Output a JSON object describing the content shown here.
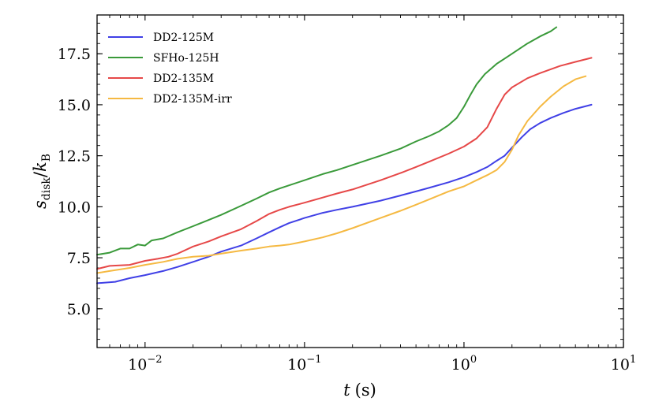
{
  "chart_data": {
    "type": "line",
    "title": "",
    "xlabel": "t (s)",
    "xlabel_var": "t",
    "xlabel_unit": "(s)",
    "ylabel": "s_disk/k_B",
    "ylabel_sym": "s",
    "ylabel_sub": "disk",
    "ylabel_den": "k",
    "ylabel_den_sub": "B",
    "xscale": "log",
    "xlim": [
      0.005,
      10
    ],
    "ylim": [
      3.1,
      19.4
    ],
    "xticks": [
      {
        "value": 0.01,
        "base": "10",
        "exp": "−2"
      },
      {
        "value": 0.1,
        "base": "10",
        "exp": "−1"
      },
      {
        "value": 1,
        "base": "10",
        "exp": "0"
      },
      {
        "value": 10,
        "base": "10",
        "exp": "1"
      }
    ],
    "yticks": [
      {
        "value": 5.0,
        "label": "5.0"
      },
      {
        "value": 7.5,
        "label": "7.5"
      },
      {
        "value": 10.0,
        "label": "10.0"
      },
      {
        "value": 12.5,
        "label": "12.5"
      },
      {
        "value": 15.0,
        "label": "15.0"
      },
      {
        "value": 17.5,
        "label": "17.5"
      }
    ],
    "legend_position": "top-left",
    "series": [
      {
        "name": "DD2-125M",
        "color": "#4040e6",
        "points": [
          [
            0.005,
            6.25
          ],
          [
            0.0065,
            6.32
          ],
          [
            0.008,
            6.5
          ],
          [
            0.01,
            6.65
          ],
          [
            0.013,
            6.85
          ],
          [
            0.016,
            7.05
          ],
          [
            0.02,
            7.3
          ],
          [
            0.025,
            7.55
          ],
          [
            0.03,
            7.8
          ],
          [
            0.04,
            8.1
          ],
          [
            0.05,
            8.45
          ],
          [
            0.06,
            8.75
          ],
          [
            0.07,
            9.0
          ],
          [
            0.08,
            9.2
          ],
          [
            0.1,
            9.45
          ],
          [
            0.13,
            9.7
          ],
          [
            0.16,
            9.85
          ],
          [
            0.2,
            10.0
          ],
          [
            0.3,
            10.3
          ],
          [
            0.4,
            10.55
          ],
          [
            0.5,
            10.75
          ],
          [
            0.6,
            10.92
          ],
          [
            0.8,
            11.2
          ],
          [
            1.0,
            11.45
          ],
          [
            1.2,
            11.7
          ],
          [
            1.4,
            11.95
          ],
          [
            1.6,
            12.25
          ],
          [
            1.8,
            12.5
          ],
          [
            2.0,
            12.9
          ],
          [
            2.3,
            13.4
          ],
          [
            2.6,
            13.8
          ],
          [
            3.0,
            14.1
          ],
          [
            3.5,
            14.35
          ],
          [
            4.2,
            14.6
          ],
          [
            5.0,
            14.8
          ],
          [
            6.3,
            15.0
          ]
        ]
      },
      {
        "name": "SFHo-125H",
        "color": "#3a9a3a",
        "points": [
          [
            0.005,
            7.65
          ],
          [
            0.006,
            7.75
          ],
          [
            0.007,
            7.95
          ],
          [
            0.008,
            7.95
          ],
          [
            0.009,
            8.15
          ],
          [
            0.01,
            8.1
          ],
          [
            0.011,
            8.35
          ],
          [
            0.013,
            8.45
          ],
          [
            0.016,
            8.75
          ],
          [
            0.02,
            9.05
          ],
          [
            0.025,
            9.35
          ],
          [
            0.03,
            9.6
          ],
          [
            0.04,
            10.05
          ],
          [
            0.05,
            10.4
          ],
          [
            0.06,
            10.7
          ],
          [
            0.07,
            10.9
          ],
          [
            0.08,
            11.05
          ],
          [
            0.1,
            11.3
          ],
          [
            0.13,
            11.6
          ],
          [
            0.16,
            11.8
          ],
          [
            0.2,
            12.05
          ],
          [
            0.3,
            12.5
          ],
          [
            0.4,
            12.85
          ],
          [
            0.5,
            13.2
          ],
          [
            0.6,
            13.45
          ],
          [
            0.7,
            13.7
          ],
          [
            0.8,
            14.0
          ],
          [
            0.9,
            14.35
          ],
          [
            1.0,
            14.9
          ],
          [
            1.1,
            15.5
          ],
          [
            1.2,
            16.0
          ],
          [
            1.35,
            16.5
          ],
          [
            1.6,
            17.0
          ],
          [
            2.0,
            17.5
          ],
          [
            2.5,
            18.0
          ],
          [
            3.0,
            18.35
          ],
          [
            3.5,
            18.6
          ],
          [
            3.8,
            18.8
          ]
        ]
      },
      {
        "name": "DD2-135M",
        "color": "#e64848",
        "points": [
          [
            0.005,
            6.95
          ],
          [
            0.006,
            7.1
          ],
          [
            0.008,
            7.15
          ],
          [
            0.01,
            7.35
          ],
          [
            0.012,
            7.45
          ],
          [
            0.014,
            7.55
          ],
          [
            0.016,
            7.7
          ],
          [
            0.02,
            8.05
          ],
          [
            0.025,
            8.3
          ],
          [
            0.03,
            8.55
          ],
          [
            0.04,
            8.9
          ],
          [
            0.05,
            9.3
          ],
          [
            0.06,
            9.65
          ],
          [
            0.07,
            9.85
          ],
          [
            0.08,
            10.0
          ],
          [
            0.1,
            10.2
          ],
          [
            0.13,
            10.45
          ],
          [
            0.16,
            10.65
          ],
          [
            0.2,
            10.85
          ],
          [
            0.3,
            11.3
          ],
          [
            0.4,
            11.65
          ],
          [
            0.5,
            11.95
          ],
          [
            0.6,
            12.2
          ],
          [
            0.8,
            12.6
          ],
          [
            1.0,
            12.95
          ],
          [
            1.2,
            13.35
          ],
          [
            1.4,
            13.9
          ],
          [
            1.6,
            14.8
          ],
          [
            1.8,
            15.5
          ],
          [
            2.0,
            15.85
          ],
          [
            2.5,
            16.3
          ],
          [
            3.0,
            16.55
          ],
          [
            4.0,
            16.9
          ],
          [
            5.0,
            17.1
          ],
          [
            6.3,
            17.3
          ]
        ]
      },
      {
        "name": "DD2-135M-irr",
        "color": "#f5b942",
        "points": [
          [
            0.005,
            6.75
          ],
          [
            0.006,
            6.85
          ],
          [
            0.008,
            7.0
          ],
          [
            0.01,
            7.15
          ],
          [
            0.013,
            7.3
          ],
          [
            0.016,
            7.45
          ],
          [
            0.02,
            7.55
          ],
          [
            0.025,
            7.6
          ],
          [
            0.03,
            7.7
          ],
          [
            0.04,
            7.85
          ],
          [
            0.05,
            7.95
          ],
          [
            0.06,
            8.05
          ],
          [
            0.07,
            8.1
          ],
          [
            0.08,
            8.15
          ],
          [
            0.1,
            8.3
          ],
          [
            0.13,
            8.5
          ],
          [
            0.16,
            8.7
          ],
          [
            0.2,
            8.95
          ],
          [
            0.3,
            9.45
          ],
          [
            0.4,
            9.8
          ],
          [
            0.5,
            10.1
          ],
          [
            0.6,
            10.35
          ],
          [
            0.8,
            10.75
          ],
          [
            1.0,
            11.0
          ],
          [
            1.2,
            11.3
          ],
          [
            1.4,
            11.55
          ],
          [
            1.6,
            11.8
          ],
          [
            1.8,
            12.2
          ],
          [
            2.0,
            12.8
          ],
          [
            2.2,
            13.5
          ],
          [
            2.5,
            14.2
          ],
          [
            3.0,
            14.9
          ],
          [
            3.5,
            15.4
          ],
          [
            4.2,
            15.9
          ],
          [
            5.0,
            16.25
          ],
          [
            5.8,
            16.4
          ]
        ]
      }
    ]
  }
}
